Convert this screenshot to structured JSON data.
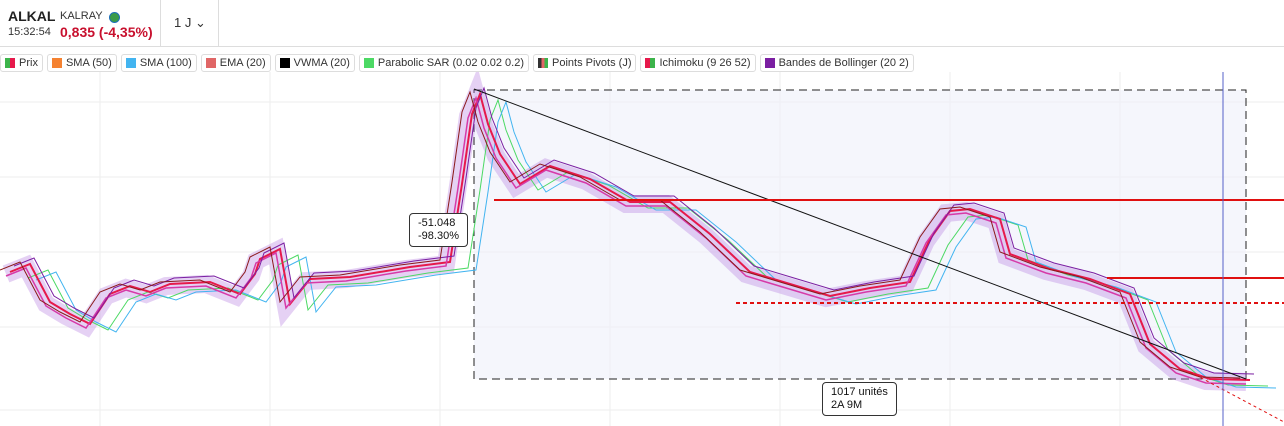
{
  "header": {
    "symbol": "ALKAL",
    "name": "KALRAY",
    "time": "15:32:54",
    "price_change": "0,835 (-4,35%)",
    "interval": "1 J"
  },
  "legend": [
    "Prix",
    "SMA (50)",
    "SMA (100)",
    "EMA (20)",
    "VWMA (20)",
    "Parabolic SAR (0.02 0.02 0.2)",
    "Points Pivots (J)",
    "Ichimoku (9 26 52)",
    "Bandes de Bollinger (20 2)"
  ],
  "annotations": {
    "measure": {
      "value": "-51.048",
      "percent": "-98.30%"
    },
    "range": {
      "units": "1017 unités",
      "duration": "2A 9M"
    }
  }
}
